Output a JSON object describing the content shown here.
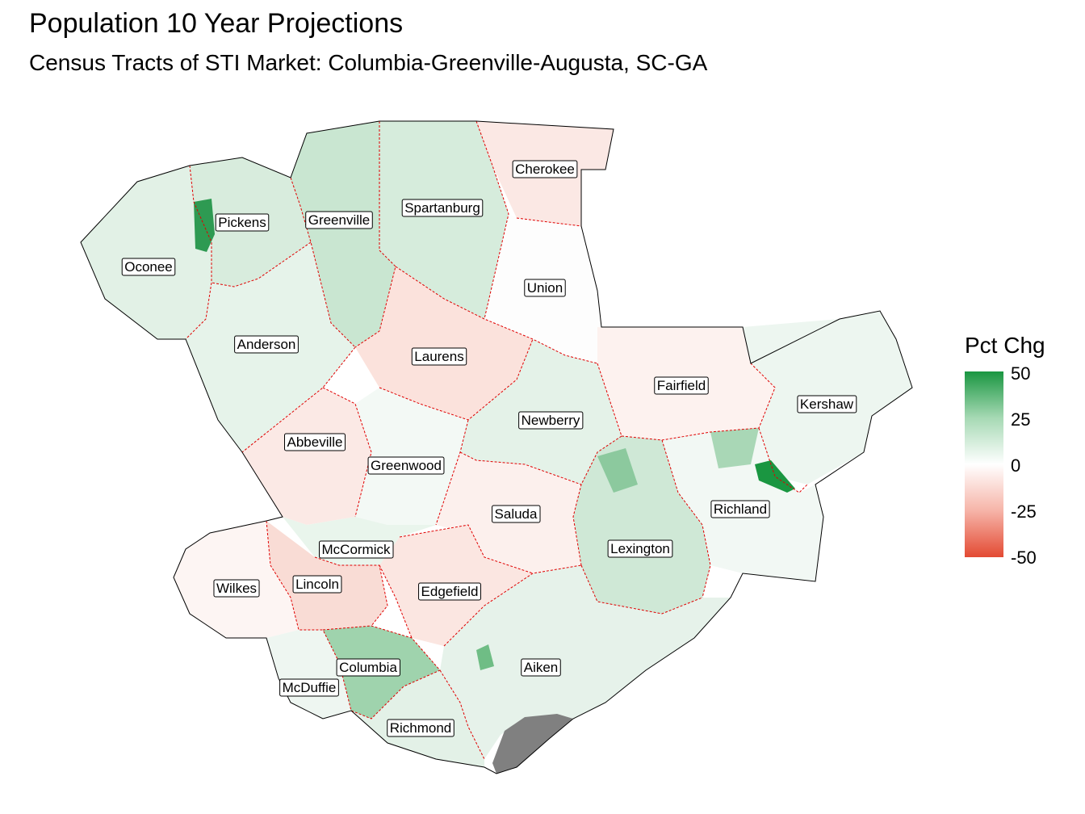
{
  "title": "Population 10 Year Projections",
  "subtitle": "Census Tracts of STI Market: Columbia-Greenville-Augusta, SC-GA",
  "legend": {
    "title": "Pct Chg",
    "ticks": [
      "50",
      "25",
      "0",
      "-25",
      "-50"
    ],
    "colors": {
      "high": "#1a9641",
      "mid": "#ffffff",
      "low": "#e34a33"
    },
    "range": [
      -50,
      50
    ]
  },
  "colors": {
    "county_border": "#e00000",
    "outer_border": "#000000",
    "no_data": "#808080"
  },
  "counties": [
    {
      "name": "Cherokee"
    },
    {
      "name": "Pickens"
    },
    {
      "name": "Greenville"
    },
    {
      "name": "Spartanburg"
    },
    {
      "name": "Oconee"
    },
    {
      "name": "Union"
    },
    {
      "name": "Anderson"
    },
    {
      "name": "Laurens"
    },
    {
      "name": "Fairfield"
    },
    {
      "name": "Kershaw"
    },
    {
      "name": "Newberry"
    },
    {
      "name": "Abbeville"
    },
    {
      "name": "Greenwood"
    },
    {
      "name": "Saluda"
    },
    {
      "name": "Richland"
    },
    {
      "name": "McCormick"
    },
    {
      "name": "Lexington"
    },
    {
      "name": "Wilkes"
    },
    {
      "name": "Lincoln"
    },
    {
      "name": "Edgefield"
    },
    {
      "name": "Columbia"
    },
    {
      "name": "Aiken"
    },
    {
      "name": "McDuffie"
    },
    {
      "name": "Richmond"
    }
  ]
}
